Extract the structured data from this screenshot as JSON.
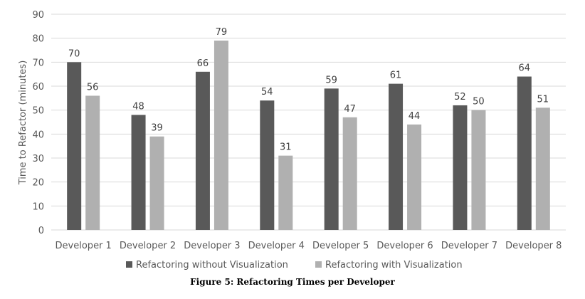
{
  "caption": "Figure 5: Refactoring Times per Developer",
  "chart_data": {
    "type": "bar",
    "ylabel": "Time to Refactor (minutes)",
    "xlabel": "",
    "ylim": [
      0,
      90
    ],
    "yticks": [
      0,
      10,
      20,
      30,
      40,
      50,
      60,
      70,
      80,
      90
    ],
    "grid": true,
    "legend_position": "bottom",
    "categories": [
      "Developer 1",
      "Developer 2",
      "Developer 3",
      "Developer 4",
      "Developer 5",
      "Developer 6",
      "Developer 7",
      "Developer 8"
    ],
    "series": [
      {
        "name": "Refactoring without Visualization",
        "color": "#595959",
        "values": [
          70,
          48,
          66,
          54,
          59,
          61,
          52,
          64
        ]
      },
      {
        "name": "Refactoring with Visualization",
        "color": "#b0b0b0",
        "values": [
          56,
          39,
          79,
          31,
          47,
          44,
          50,
          51
        ]
      }
    ]
  }
}
